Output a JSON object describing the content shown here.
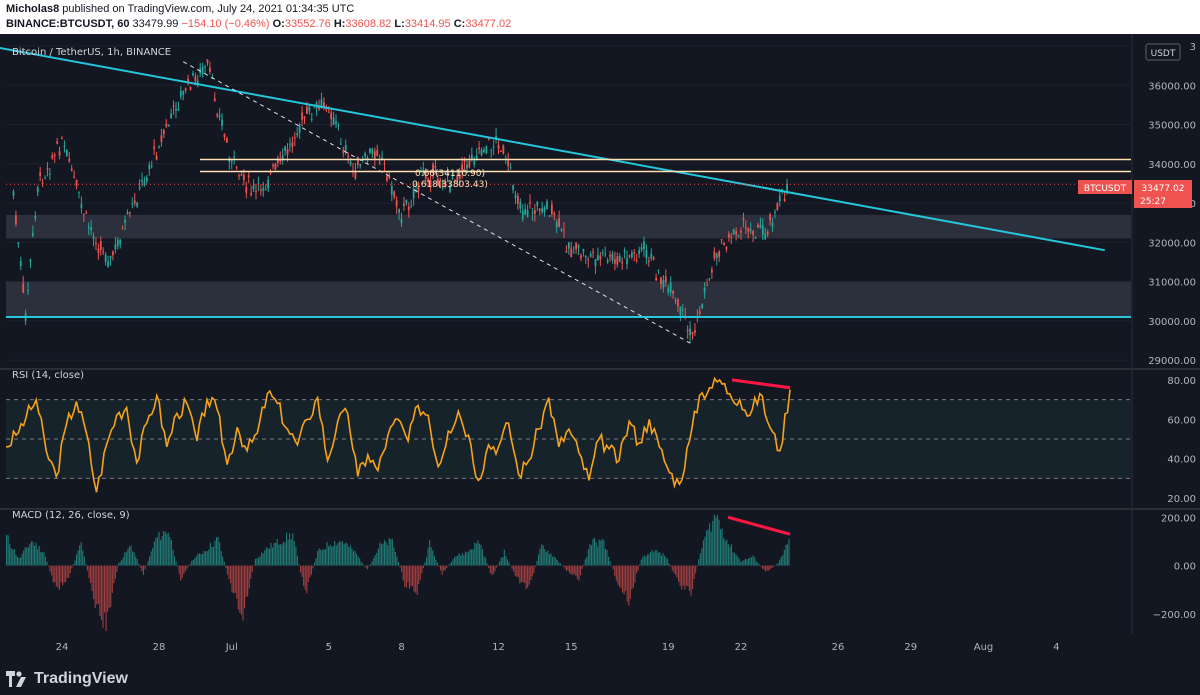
{
  "header": {
    "user": "Micholas8",
    "published": "published on TradingView.com, July 24, 2021 01:34:35 UTC",
    "symbol": "BINANCE:BTCUSDT, 60",
    "last": "33479.99",
    "change": "−154.10 (−0.46%)",
    "o_label": "O:",
    "o_value": "33552.76",
    "h_label": "H:",
    "h_value": "33608.82",
    "l_label": "L:",
    "l_value": "33414.95",
    "c_label": "C:",
    "c_value": "33477.02"
  },
  "chart_data": [
    {
      "type": "candlestick",
      "title": "Bitcoin / TetherUS, 1h, BINANCE",
      "currency": "USDT",
      "ylim": [
        28800,
        37000
      ],
      "yticks": [
        "3",
        "36000.00",
        "35000.00",
        "34000.00",
        "33000.00",
        "32000.00",
        "31000.00",
        "30000.00",
        "29000.00"
      ],
      "x_ticks": [
        "24",
        "28",
        "Jul",
        "5",
        "8",
        "12",
        "15",
        "19",
        "22",
        "26",
        "29",
        "Aug",
        "4"
      ],
      "last_price_label": "BTCUSDT",
      "last_price": "33477.02",
      "countdown": "25:27",
      "fib_levels": [
        {
          "label": "0.66(34110.90)",
          "value": 34110.9
        },
        {
          "label": "0.618(33803.43)",
          "value": 33803.43
        }
      ],
      "path_points": [
        {
          "date": "Jun 22",
          "price": 33200
        },
        {
          "date": "Jun 22 12h",
          "price": 30100
        },
        {
          "date": "Jun 23",
          "price": 33400
        },
        {
          "date": "Jun 24",
          "price": 34600
        },
        {
          "date": "Jun 25",
          "price": 32500
        },
        {
          "date": "Jun 26",
          "price": 31500
        },
        {
          "date": "Jun 27",
          "price": 33000
        },
        {
          "date": "Jun 28",
          "price": 34500
        },
        {
          "date": "Jun 29",
          "price": 35800
        },
        {
          "date": "Jun 30",
          "price": 36500
        },
        {
          "date": "Jul 1",
          "price": 34000
        },
        {
          "date": "Jul 2",
          "price": 33200
        },
        {
          "date": "Jul 3",
          "price": 34000
        },
        {
          "date": "Jul 4",
          "price": 35200
        },
        {
          "date": "Jul 5",
          "price": 35500
        },
        {
          "date": "Jul 6",
          "price": 33800
        },
        {
          "date": "Jul 7",
          "price": 34400
        },
        {
          "date": "Jul 8",
          "price": 32700
        },
        {
          "date": "Jul 9",
          "price": 33800
        },
        {
          "date": "Jul 10",
          "price": 33500
        },
        {
          "date": "Jul 11",
          "price": 34200
        },
        {
          "date": "Jul 12",
          "price": 34600
        },
        {
          "date": "Jul 13",
          "price": 32800
        },
        {
          "date": "Jul 14",
          "price": 32900
        },
        {
          "date": "Jul 15",
          "price": 31800
        },
        {
          "date": "Jul 16",
          "price": 31600
        },
        {
          "date": "Jul 17",
          "price": 31500
        },
        {
          "date": "Jul 18",
          "price": 31800
        },
        {
          "date": "Jul 19",
          "price": 30800
        },
        {
          "date": "Jul 20",
          "price": 29600
        },
        {
          "date": "Jul 21",
          "price": 31800
        },
        {
          "date": "Jul 22",
          "price": 32400
        },
        {
          "date": "Jul 23",
          "price": 32300
        },
        {
          "date": "Jul 24",
          "price": 33479
        }
      ],
      "zones": [
        {
          "from": 32100,
          "to": 32700
        },
        {
          "from": 30100,
          "to": 31000
        }
      ],
      "support_level": 30100,
      "trendline": {
        "from": {
          "date": "Jun 21",
          "price": 37000
        },
        "to": {
          "date": "Aug 6",
          "price": 31800
        }
      },
      "dashed_trendline": {
        "from": {
          "date": "Jun 29",
          "price": 36600
        },
        "to": {
          "date": "Jul 20",
          "price": 29400
        }
      }
    },
    {
      "type": "line",
      "title": "RSI (14, close)",
      "ylim": [
        15,
        85
      ],
      "yticks": [
        "80.00",
        "60.00",
        "40.00",
        "20.00"
      ],
      "bands": [
        70,
        50,
        30
      ],
      "values": [
        46,
        52,
        61,
        70,
        44,
        31,
        57,
        69,
        53,
        23,
        47,
        62,
        66,
        38,
        58,
        72,
        46,
        63,
        68,
        49,
        70,
        65,
        37,
        56,
        44,
        53,
        73,
        68,
        55,
        47,
        60,
        71,
        39,
        59,
        63,
        31,
        42,
        34,
        52,
        60,
        49,
        67,
        62,
        36,
        54,
        64,
        52,
        29,
        47,
        46,
        58,
        32,
        39,
        55,
        71,
        46,
        55,
        43,
        29,
        50,
        45,
        39,
        59,
        48,
        60,
        46,
        33,
        27,
        49,
        72,
        76,
        80,
        73,
        70,
        62,
        73,
        56,
        44,
        75
      ],
      "divergence": {
        "from": 80,
        "to": 76
      }
    },
    {
      "type": "bar",
      "title": "MACD (12, 26, close, 9)",
      "ylim": [
        -250,
        230
      ],
      "yticks": [
        "200.00",
        "0.00",
        "−200.00"
      ],
      "values": [
        130,
        30,
        110,
        60,
        -110,
        -50,
        100,
        -150,
        -270,
        10,
        90,
        -40,
        120,
        160,
        -60,
        30,
        70,
        120,
        -90,
        -220,
        30,
        80,
        110,
        140,
        -130,
        60,
        100,
        110,
        60,
        -20,
        90,
        110,
        -80,
        -120,
        100,
        -40,
        40,
        60,
        110,
        -50,
        60,
        -60,
        -100,
        90,
        40,
        -20,
        -60,
        110,
        100,
        -60,
        -160,
        30,
        70,
        40,
        -80,
        -120,
        110,
        230,
        100,
        20,
        40,
        -30,
        10,
        120
      ],
      "divergence": {
        "from": 200,
        "to": 130
      }
    }
  ],
  "footer": {
    "brand": "TradingView"
  }
}
